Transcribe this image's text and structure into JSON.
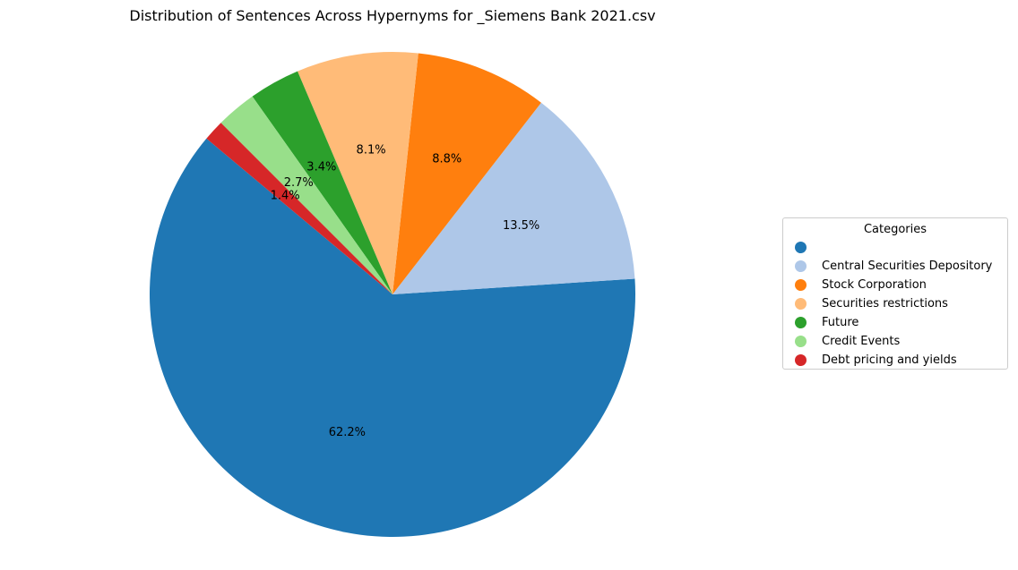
{
  "chart_data": {
    "type": "pie",
    "title": "Distribution of Sentences Across Hypernyms for _Siemens Bank 2021.csv",
    "start_angle_deg": 140,
    "direction": "counterclockwise",
    "slices": [
      {
        "label": "",
        "percent": 62.2,
        "percent_label": "62.2%",
        "color": "#1f77b4"
      },
      {
        "label": "Central Securities Depository",
        "percent": 13.5,
        "percent_label": "13.5%",
        "color": "#aec7e8"
      },
      {
        "label": "Stock Corporation",
        "percent": 8.8,
        "percent_label": "8.8%",
        "color": "#ff7f0e"
      },
      {
        "label": "Securities restrictions",
        "percent": 8.1,
        "percent_label": "8.1%",
        "color": "#ffbb78"
      },
      {
        "label": "Future",
        "percent": 3.4,
        "percent_label": "3.4%",
        "color": "#2ca02c"
      },
      {
        "label": "Credit Events",
        "percent": 2.7,
        "percent_label": "2.7%",
        "color": "#98df8a"
      },
      {
        "label": "Debt pricing and yields",
        "percent": 1.4,
        "percent_label": "1.4%",
        "color": "#d62728"
      }
    ],
    "legend": {
      "title": "Categories",
      "placement": "center-right"
    }
  }
}
